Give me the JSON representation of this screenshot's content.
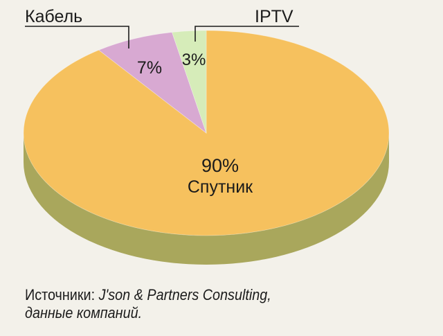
{
  "chart_data": {
    "type": "pie",
    "slices": [
      {
        "name": "Спутник",
        "value": 90,
        "label": "90%",
        "color": "#f6c15e"
      },
      {
        "name": "Кабель",
        "value": 7,
        "label": "7%",
        "color": "#d8a9d2"
      },
      {
        "name": "IPTV",
        "value": 3,
        "label": "3%",
        "color": "#d6ecb9"
      }
    ],
    "callouts": {
      "cable": "Кабель",
      "iptv": "IPTV"
    },
    "inner_label": {
      "value": "90%",
      "name": "Спутник"
    },
    "side_color": "#a9a75c"
  },
  "source": {
    "prefix": "Источники: ",
    "italic": "J'son & Partners Consulting,",
    "line2": "данные компаний."
  }
}
